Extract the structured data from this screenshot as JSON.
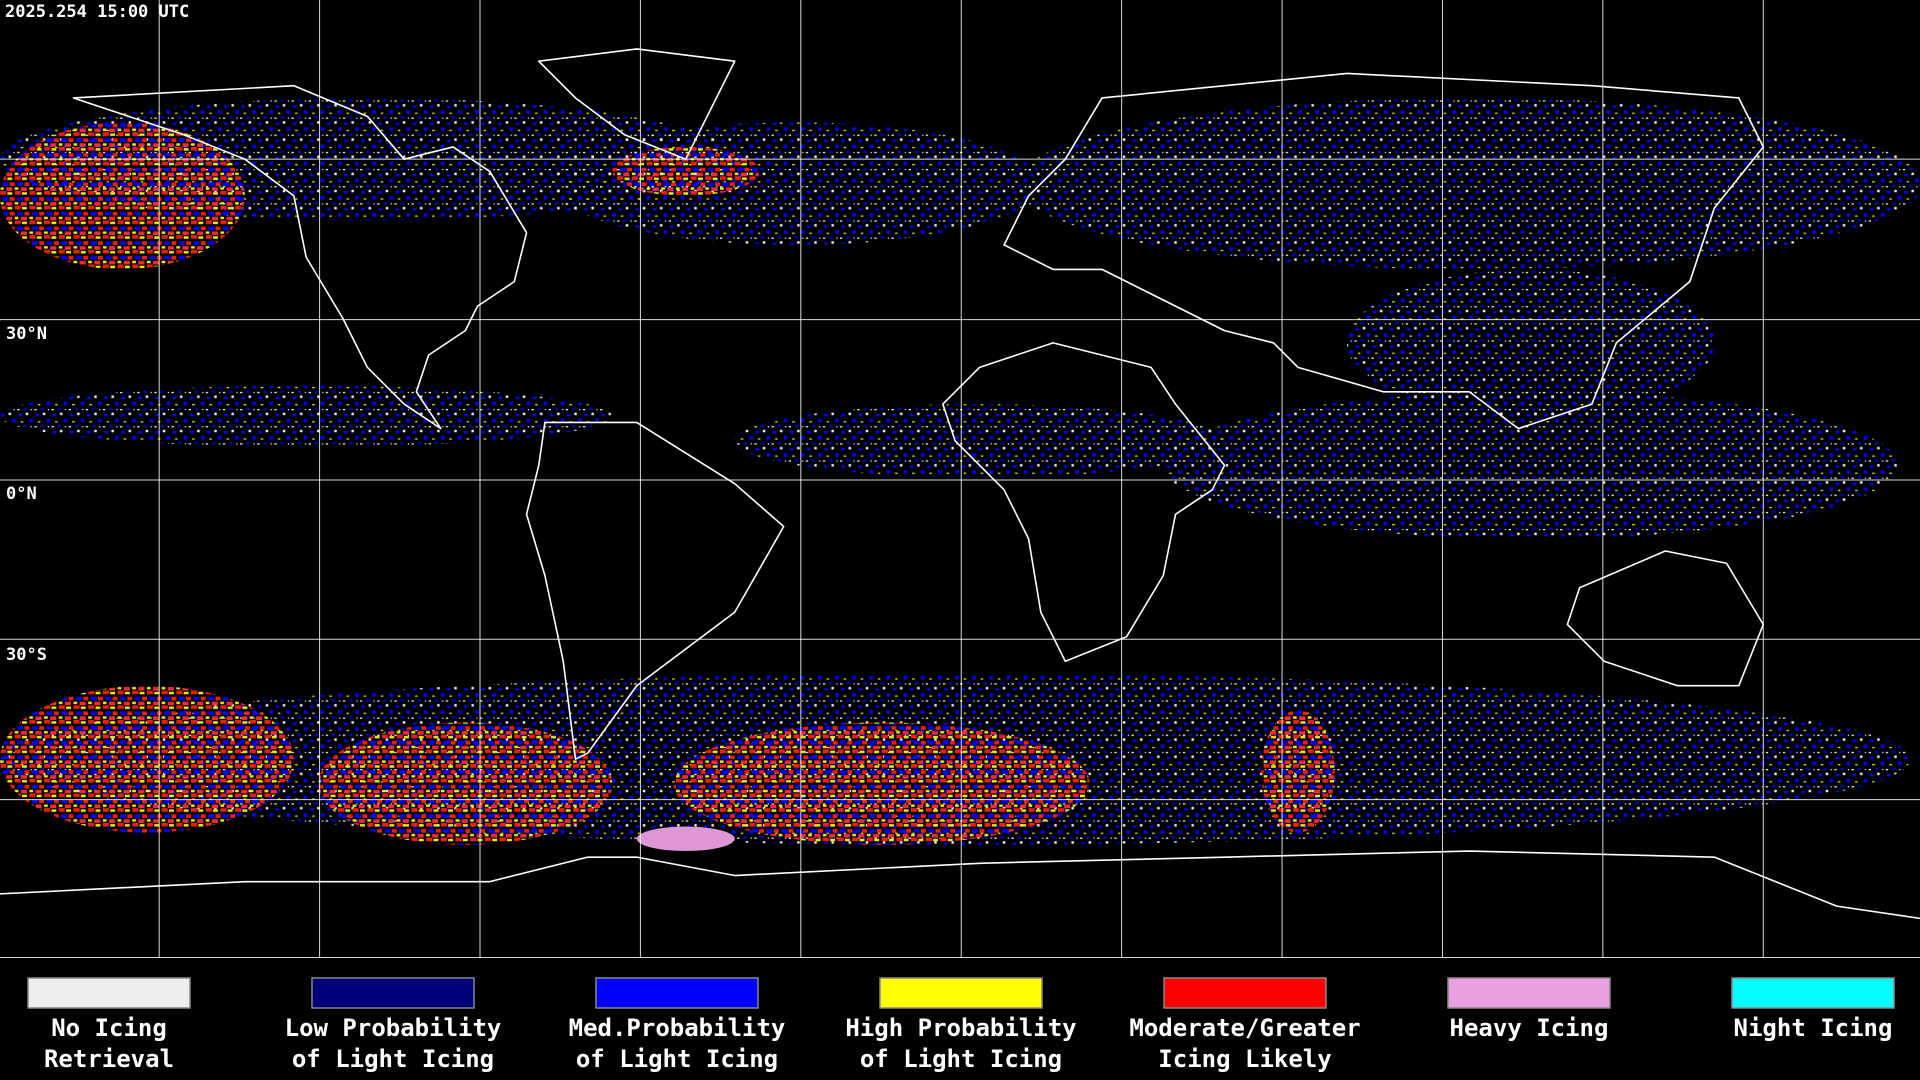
{
  "header": {
    "timestamp": "2025.254 15:00 UTC"
  },
  "map": {
    "latitude_labels": [
      "30°N",
      "0°N",
      "30°S"
    ]
  },
  "legend": {
    "items": [
      {
        "lines": [
          "No Icing",
          "Retrieval"
        ],
        "color": "#eeeeee"
      },
      {
        "lines": [
          "Low Probability",
          "of Light Icing"
        ],
        "color": "#00007a"
      },
      {
        "lines": [
          "Med.Probability",
          "of Light Icing"
        ],
        "color": "#0000ff"
      },
      {
        "lines": [
          "High Probability",
          "of Light Icing"
        ],
        "color": "#ffff00"
      },
      {
        "lines": [
          "Moderate/Greater",
          "Icing Likely"
        ],
        "color": "#ff0000"
      },
      {
        "lines": [
          "Heavy Icing"
        ],
        "color": "#e8a0e0"
      },
      {
        "lines": [
          "Night Icing"
        ],
        "color": "#00ffff"
      }
    ]
  }
}
